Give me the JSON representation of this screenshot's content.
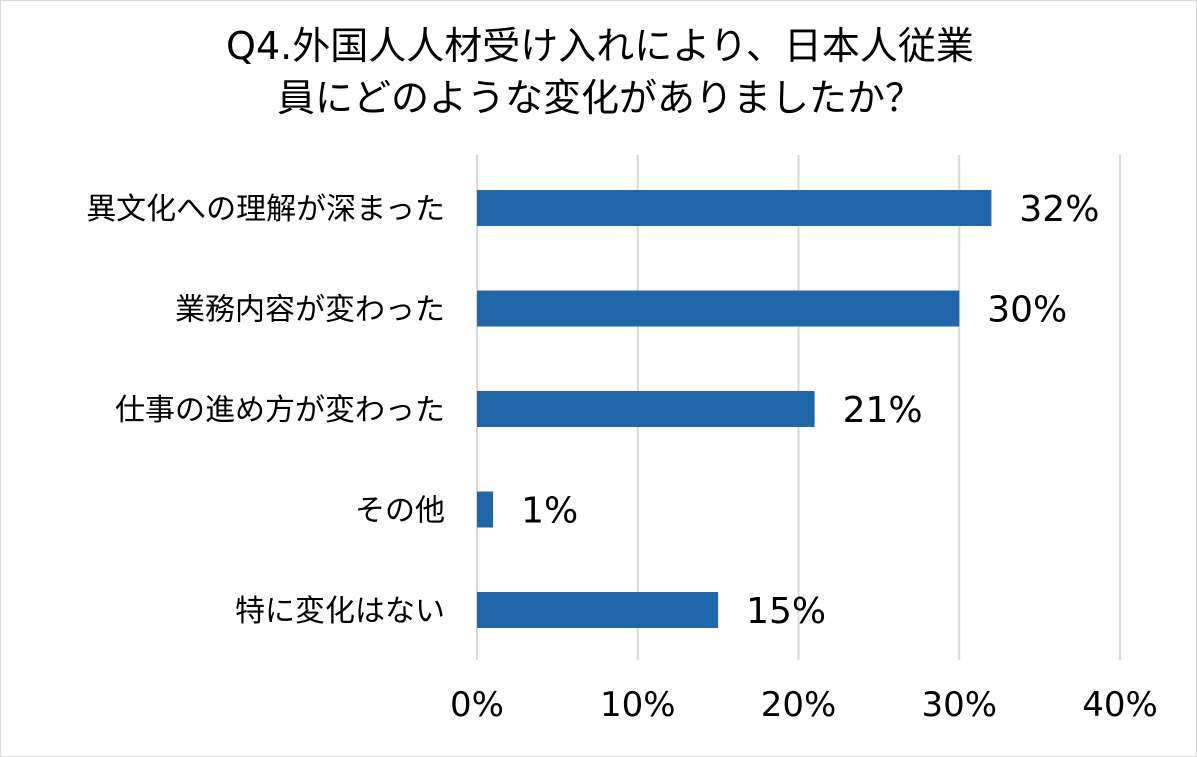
{
  "chart_data": {
    "type": "bar",
    "orientation": "horizontal",
    "title_lines": [
      "Q4.外国人人材受け入れにより、日本人従業",
      "員にどのような変化がありましたか？"
    ],
    "categories": [
      "異文化への理解が深まった",
      "業務内容が変わった",
      "仕事の進め方が変わった",
      "その他",
      "特に変化はない"
    ],
    "values": [
      32,
      30,
      21,
      1,
      15
    ],
    "data_labels": [
      "32%",
      "30%",
      "21%",
      "1%",
      "15%"
    ],
    "xlim": [
      0,
      40
    ],
    "x_ticks": [
      0,
      10,
      20,
      30,
      40
    ],
    "x_tick_labels": [
      "0%",
      "10%",
      "20%",
      "30%",
      "40%"
    ],
    "grid": "vertical",
    "legend": "none",
    "bar_color": "#1F67A8",
    "grid_color": "#d9d9d9"
  }
}
